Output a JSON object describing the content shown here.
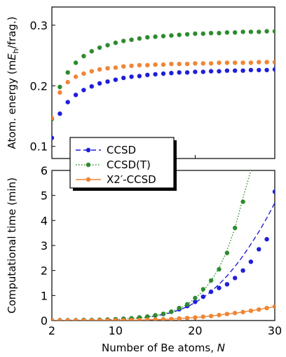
{
  "colors": {
    "CCSD": "#1f1fd9",
    "CCSD(T)": "#2e8b2e",
    "X2'-CCSD": "#f08535"
  },
  "legend": {
    "placement": "overlapping the lower-left of the top panel",
    "entries": [
      "CCSD",
      "CCSD(T)",
      "X2′-CCSD"
    ]
  },
  "chart_data": [
    {
      "type": "scatter",
      "title": "",
      "xlabel": "",
      "ylabel": "Atom. energy (mEh/frag.)",
      "ylabel_parts": {
        "prefix": "Atom. energy (m",
        "var": "E",
        "sub": "h",
        "suffix": "/frag.)"
      },
      "xlim": [
        2,
        30
      ],
      "ylim": [
        0.08,
        0.33
      ],
      "yticks": [
        0.1,
        0.2,
        0.3
      ],
      "ytick_labels": [
        "0.1",
        "0.2",
        "0.3"
      ],
      "xticks": [
        10,
        20,
        30
      ],
      "grid": false,
      "series": [
        {
          "name": "CCSD",
          "style": "dots",
          "x": [
            2,
            3,
            4,
            5,
            6,
            7,
            8,
            9,
            10,
            11,
            12,
            13,
            14,
            15,
            16,
            17,
            18,
            19,
            20,
            21,
            22,
            23,
            24,
            25,
            26,
            27,
            28,
            29,
            30
          ],
          "y": [
            0.114,
            0.154,
            0.173,
            0.185,
            0.193,
            0.199,
            0.204,
            0.207,
            0.21,
            0.213,
            0.215,
            0.216,
            0.218,
            0.219,
            0.22,
            0.221,
            0.222,
            0.222,
            0.223,
            0.223,
            0.224,
            0.224,
            0.225,
            0.225,
            0.225,
            0.226,
            0.226,
            0.226,
            0.227
          ]
        },
        {
          "name": "CCSD(T)",
          "style": "dots",
          "x": [
            2,
            3,
            4,
            5,
            6,
            7,
            8,
            9,
            10,
            11,
            12,
            13,
            14,
            15,
            16,
            17,
            18,
            19,
            20,
            21,
            22,
            23,
            24,
            25,
            26,
            27,
            28,
            29,
            30
          ],
          "y": [
            0.145,
            0.198,
            0.222,
            0.238,
            0.249,
            0.257,
            0.263,
            0.267,
            0.271,
            0.274,
            0.276,
            0.278,
            0.28,
            0.281,
            0.282,
            0.283,
            0.284,
            0.285,
            0.286,
            0.286,
            0.287,
            0.287,
            0.288,
            0.288,
            0.289,
            0.289,
            0.289,
            0.29,
            0.29
          ]
        },
        {
          "name": "X2′-CCSD",
          "style": "dots",
          "x": [
            2,
            3,
            4,
            5,
            6,
            7,
            8,
            9,
            10,
            11,
            12,
            13,
            14,
            15,
            16,
            17,
            18,
            19,
            20,
            21,
            22,
            23,
            24,
            25,
            26,
            27,
            28,
            29,
            30
          ],
          "y": [
            0.147,
            0.189,
            0.206,
            0.215,
            0.22,
            0.224,
            0.227,
            0.229,
            0.23,
            0.232,
            0.233,
            0.234,
            0.234,
            0.235,
            0.235,
            0.236,
            0.236,
            0.236,
            0.237,
            0.237,
            0.237,
            0.238,
            0.238,
            0.238,
            0.238,
            0.238,
            0.239,
            0.239,
            0.239
          ]
        }
      ]
    },
    {
      "type": "line",
      "title": "",
      "xlabel": "Number of Be atoms, N",
      "xlabel_parts": {
        "prefix": "Number of Be atoms, ",
        "var": "N"
      },
      "ylabel": "Computational time (min)",
      "xlim": [
        2,
        30
      ],
      "ylim": [
        0,
        6
      ],
      "xticks": [
        2,
        10,
        20,
        30
      ],
      "xtick_labels": [
        "2",
        "10",
        "20",
        "30"
      ],
      "yticks": [
        0,
        1,
        2,
        3,
        4,
        5,
        6
      ],
      "ytick_labels": [
        "0",
        "1",
        "2",
        "3",
        "4",
        "5",
        "6"
      ],
      "grid": false,
      "series": [
        {
          "name": "CCSD",
          "style": "dashed line with dots",
          "x": [
            2,
            3,
            4,
            5,
            6,
            7,
            8,
            9,
            10,
            11,
            12,
            13,
            14,
            15,
            16,
            17,
            18,
            19,
            20,
            21,
            22,
            23,
            24,
            25,
            26,
            27,
            28,
            29,
            30
          ],
          "y": [
            0.01,
            0.01,
            0.01,
            0.01,
            0.02,
            0.02,
            0.03,
            0.04,
            0.05,
            0.07,
            0.09,
            0.12,
            0.15,
            0.2,
            0.26,
            0.35,
            0.45,
            0.58,
            0.75,
            0.95,
            1.15,
            1.3,
            1.45,
            1.7,
            2.0,
            2.35,
            2.85,
            3.25,
            5.15
          ],
          "fit": {
            "x": [
              2,
              4,
              6,
              8,
              10,
              12,
              14,
              16,
              17,
              18,
              19,
              20,
              21,
              22,
              23,
              24,
              25,
              26,
              27,
              28,
              29,
              30
            ],
            "y": [
              0.0,
              0.01,
              0.01,
              0.02,
              0.04,
              0.07,
              0.13,
              0.24,
              0.32,
              0.42,
              0.55,
              0.72,
              0.92,
              1.16,
              1.45,
              1.78,
              2.16,
              2.58,
              3.05,
              3.55,
              4.1,
              4.7
            ]
          }
        },
        {
          "name": "CCSD(T)",
          "style": "dotted line with dots",
          "x": [
            2,
            3,
            4,
            5,
            6,
            7,
            8,
            9,
            10,
            11,
            12,
            13,
            14,
            15,
            16,
            17,
            18,
            19,
            20,
            21,
            22,
            23,
            24,
            25,
            26
          ],
          "y": [
            0.01,
            0.01,
            0.01,
            0.01,
            0.02,
            0.02,
            0.03,
            0.04,
            0.05,
            0.07,
            0.09,
            0.12,
            0.16,
            0.21,
            0.27,
            0.35,
            0.5,
            0.65,
            0.9,
            1.25,
            1.6,
            2.05,
            2.7,
            3.7,
            4.75
          ],
          "fit": {
            "x": [
              2,
              4,
              6,
              8,
              10,
              12,
              14,
              16,
              17,
              18,
              19,
              20,
              21,
              22,
              23,
              24,
              25,
              26,
              27
            ],
            "y": [
              0.0,
              0.01,
              0.01,
              0.02,
              0.04,
              0.08,
              0.14,
              0.26,
              0.36,
              0.48,
              0.65,
              0.88,
              1.18,
              1.58,
              2.1,
              2.8,
              3.7,
              4.9,
              6.0
            ]
          }
        },
        {
          "name": "X2′-CCSD",
          "style": "solid line with dots",
          "x": [
            2,
            3,
            4,
            5,
            6,
            7,
            8,
            9,
            10,
            11,
            12,
            13,
            14,
            15,
            16,
            17,
            18,
            19,
            20,
            21,
            22,
            23,
            24,
            25,
            26,
            27,
            28,
            29,
            30
          ],
          "y": [
            0.0,
            0.0,
            0.0,
            0.0,
            0.0,
            0.0,
            0.01,
            0.01,
            0.01,
            0.01,
            0.02,
            0.02,
            0.03,
            0.04,
            0.05,
            0.06,
            0.08,
            0.1,
            0.12,
            0.15,
            0.18,
            0.22,
            0.26,
            0.3,
            0.34,
            0.39,
            0.44,
            0.5,
            0.56
          ]
        }
      ]
    }
  ]
}
